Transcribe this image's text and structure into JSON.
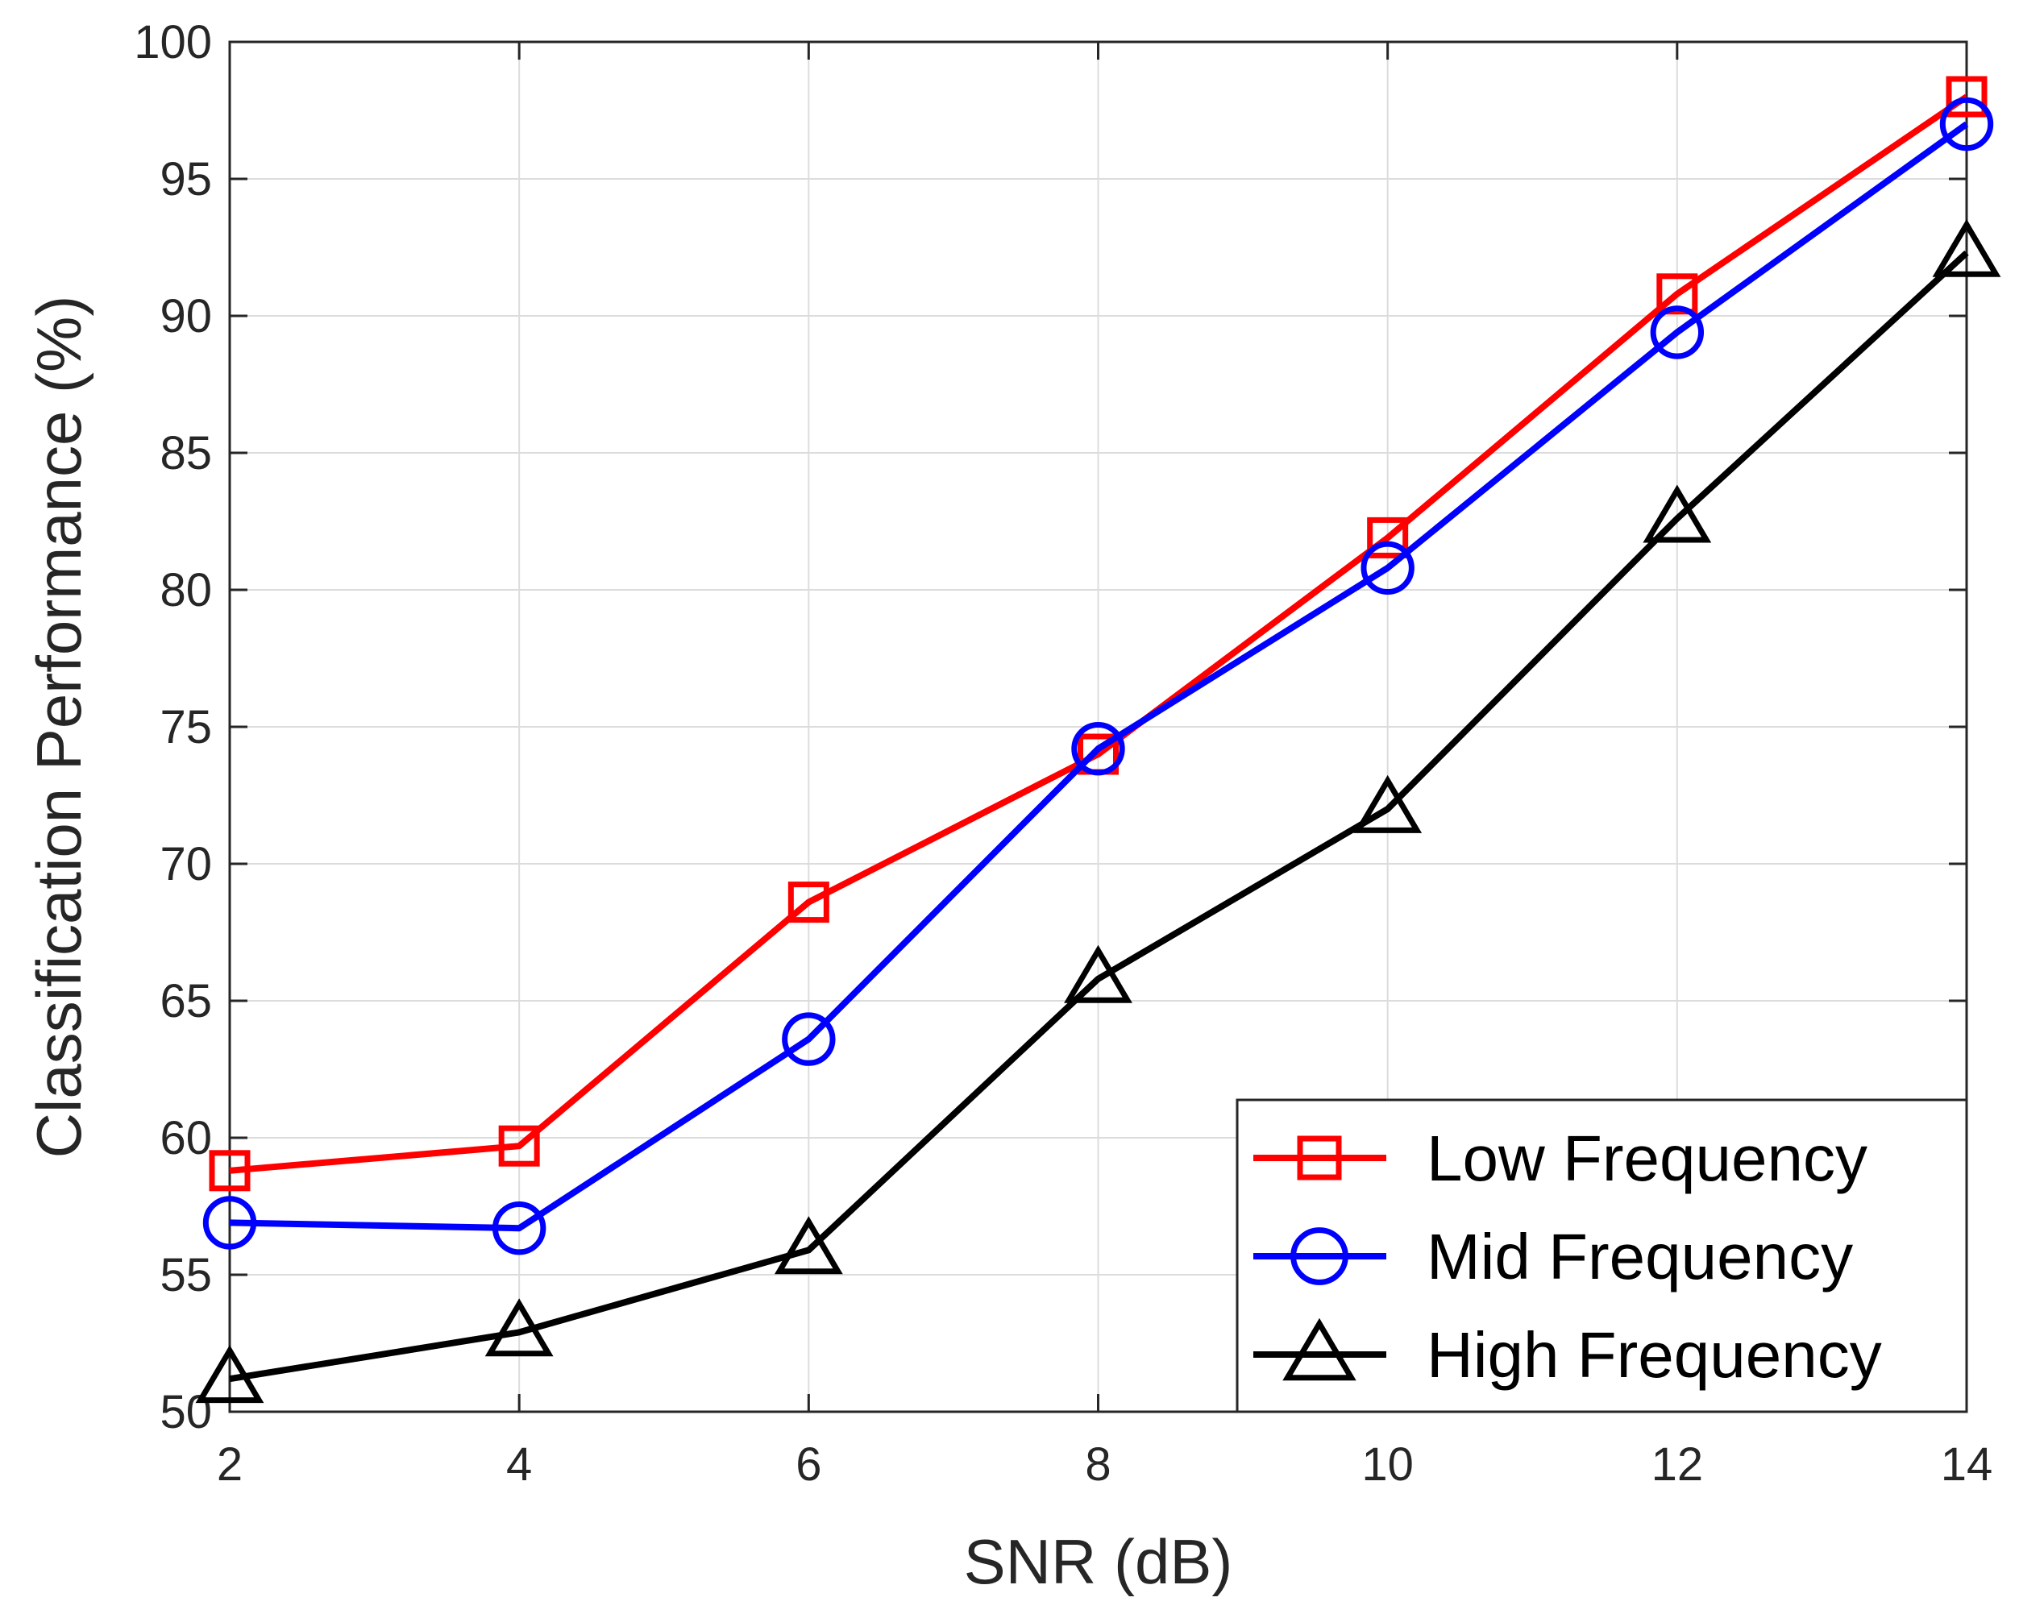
{
  "chart_data": {
    "type": "line",
    "title": "",
    "xlabel": "SNR (dB)",
    "ylabel": "Classification Performance (%)",
    "xlim": [
      2,
      14
    ],
    "ylim": [
      50,
      100
    ],
    "xticks": [
      "2",
      "4",
      "6",
      "8",
      "10",
      "12",
      "14"
    ],
    "yticks": [
      "50",
      "55",
      "60",
      "65",
      "70",
      "75",
      "80",
      "85",
      "90",
      "95",
      "100"
    ],
    "grid": true,
    "legend_position": "bottom-right",
    "x": [
      2,
      4,
      6,
      8,
      10,
      12,
      14
    ],
    "series": [
      {
        "name": "Low Frequency",
        "color": "#ff0000",
        "marker": "square",
        "values": [
          58.8,
          59.7,
          68.6,
          74.0,
          81.9,
          90.8,
          98.0
        ]
      },
      {
        "name": "Mid Frequency",
        "color": "#0000ff",
        "marker": "circle",
        "values": [
          56.9,
          56.7,
          63.6,
          74.2,
          80.8,
          89.4,
          97.0
        ]
      },
      {
        "name": "High Frequency",
        "color": "#000000",
        "marker": "triangle",
        "values": [
          51.2,
          52.9,
          55.9,
          65.8,
          72.0,
          82.6,
          92.3
        ]
      }
    ]
  }
}
